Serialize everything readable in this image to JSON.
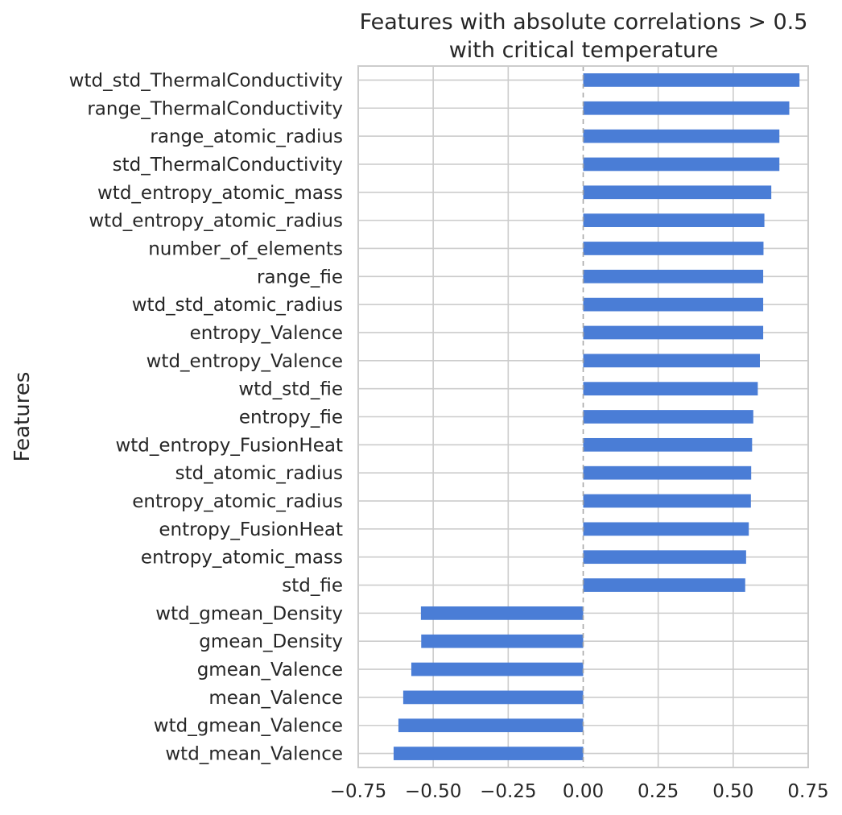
{
  "chart_data": {
    "type": "bar",
    "orientation": "horizontal",
    "title": "Features with absolute correlations > 0.5\nwith critical temperature",
    "xlabel": "",
    "ylabel": "Features",
    "xlim": [
      -0.75,
      0.75
    ],
    "xticks": [
      -0.75,
      -0.5,
      -0.25,
      0.0,
      0.25,
      0.5,
      0.75
    ],
    "xtick_labels": [
      "−0.75",
      "−0.50",
      "−0.25",
      "0.00",
      "0.25",
      "0.50",
      "0.75"
    ],
    "grid": true,
    "bar_color": "#4a7dd6",
    "categories": [
      "wtd_std_ThermalConductivity",
      "range_ThermalConductivity",
      "range_atomic_radius",
      "std_ThermalConductivity",
      "wtd_entropy_atomic_mass",
      "wtd_entropy_atomic_radius",
      "number_of_elements",
      "range_fie",
      "wtd_std_atomic_radius",
      "entropy_Valence",
      "wtd_entropy_Valence",
      "wtd_std_fie",
      "entropy_fie",
      "wtd_entropy_FusionHeat",
      "std_atomic_radius",
      "entropy_atomic_radius",
      "entropy_FusionHeat",
      "entropy_atomic_mass",
      "std_fie",
      "wtd_gmean_Density",
      "gmean_Density",
      "gmean_Valence",
      "mean_Valence",
      "wtd_gmean_Valence",
      "wtd_mean_Valence"
    ],
    "values": [
      0.721,
      0.687,
      0.654,
      0.654,
      0.627,
      0.604,
      0.601,
      0.6,
      0.6,
      0.6,
      0.589,
      0.582,
      0.567,
      0.563,
      0.56,
      0.559,
      0.552,
      0.543,
      0.54,
      -0.541,
      -0.54,
      -0.573,
      -0.6,
      -0.616,
      -0.632
    ]
  }
}
